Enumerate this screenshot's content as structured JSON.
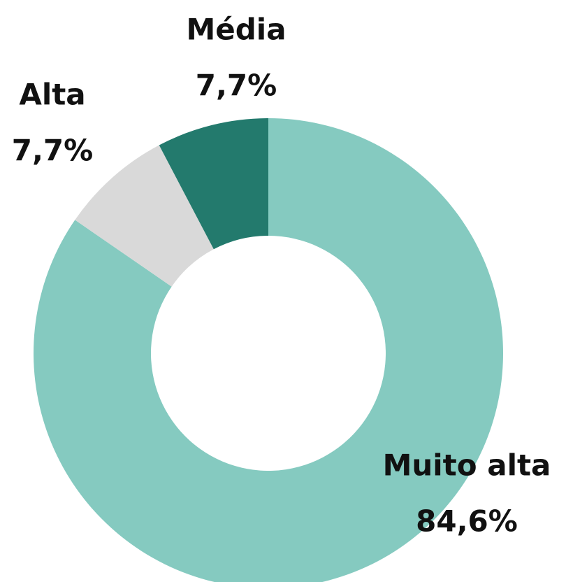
{
  "chart_data": {
    "type": "pie",
    "donut": true,
    "categories": [
      "Muito alta",
      "Alta",
      "Média"
    ],
    "values": [
      84.6,
      7.7,
      7.7
    ],
    "value_labels": [
      "84,6%",
      "7,7%",
      "7,7%"
    ],
    "colors": [
      "#85cac0",
      "#d9d9d9",
      "#237a6d"
    ]
  }
}
